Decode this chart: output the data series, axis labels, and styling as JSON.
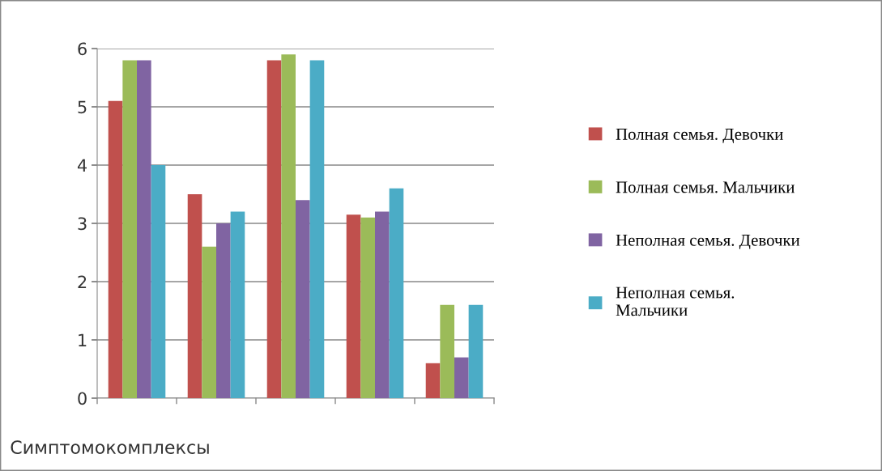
{
  "chart_data": {
    "type": "bar",
    "xlabel": "Симптомокомплексы",
    "categories": [
      null,
      null,
      null,
      null,
      null
    ],
    "series": [
      {
        "name": "Полная семья. Девочки",
        "color": "#c0504d",
        "values": [
          5.1,
          3.5,
          5.8,
          3.15,
          0.6
        ]
      },
      {
        "name": "Полная семья. Мальчики",
        "color": "#9bbb59",
        "values": [
          5.8,
          2.6,
          5.9,
          3.1,
          1.6
        ]
      },
      {
        "name": "Неполная семья. Девочки",
        "color": "#8064a2",
        "values": [
          5.8,
          3.0,
          3.4,
          3.2,
          0.7
        ]
      },
      {
        "name": "Неполная семья.\nМальчики",
        "color": "#4bacc6",
        "values": [
          4.0,
          3.2,
          5.8,
          3.6,
          1.6
        ]
      }
    ],
    "ylim": [
      0,
      6
    ],
    "yticks": [
      0,
      1,
      2,
      3,
      4,
      5,
      6
    ],
    "grid": "y",
    "legend": "right"
  }
}
